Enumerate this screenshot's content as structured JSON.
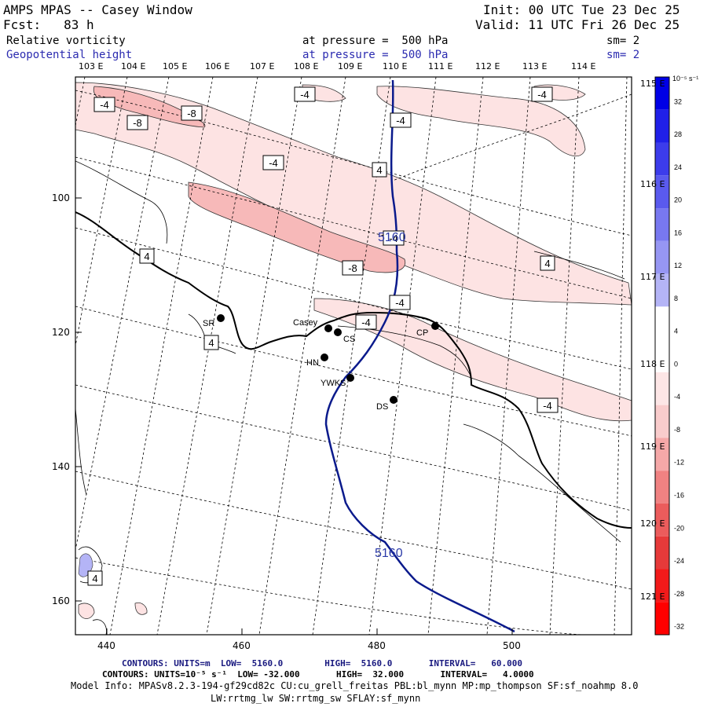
{
  "header": {
    "app_title": "AMPS MPAS -- Casey Window",
    "init": "Init: 00 UTC Tue 23 Dec 25",
    "forecast": "Fcst:   83 h",
    "valid": "Valid: 11 UTC Fri 26 Dec 25",
    "field1_name": "Relative vorticity",
    "field1_level": "at pressure =  500 hPa",
    "field1_smooth": "sm= 2",
    "field2_name": "Geopotential height",
    "field2_level": "at pressure =  500 hPa",
    "field2_smooth": "sm= 2"
  },
  "longitude_labels_top": [
    "103 E",
    "104 E",
    "105 E",
    "106 E",
    "107 E",
    "108 E",
    "109 E",
    "110 E",
    "111 E",
    "112 E",
    "113 E",
    "114 E"
  ],
  "longitude_labels_right": [
    "115 E",
    "116 E",
    "117 E",
    "118 E",
    "119 E",
    "120 E",
    "121 E"
  ],
  "x_ticks": [
    "440",
    "460",
    "480",
    "500"
  ],
  "y_ticks": [
    "100",
    "120",
    "140",
    "160"
  ],
  "stations": [
    {
      "name": "SR"
    },
    {
      "name": "Casey"
    },
    {
      "name": "CS"
    },
    {
      "name": "CP"
    },
    {
      "name": "HN"
    },
    {
      "name": "YWKS"
    },
    {
      "name": "DS"
    }
  ],
  "contour_labels": {
    "vorticity": [
      "-4",
      "-8",
      "-8",
      "-4",
      "-4",
      "-4",
      "-4",
      "-8",
      "4",
      "-4",
      "4",
      "-4",
      "-4",
      "-4",
      "4",
      "4",
      "4"
    ],
    "height": [
      "5160",
      "5160"
    ]
  },
  "colorbar": {
    "units": "10⁻⁵ s⁻¹",
    "labels": [
      "32",
      "28",
      "24",
      "20",
      "16",
      "12",
      "8",
      "4",
      "0",
      "-4",
      "-8",
      "-12",
      "-16",
      "-20",
      "-24",
      "-28",
      "-32"
    ],
    "colors": [
      "#0000e6",
      "#2020e8",
      "#3c3ceb",
      "#5a5aee",
      "#7878f0",
      "#9696f3",
      "#b4b4f6",
      "#ffffff",
      "#ffffff",
      "#fde6e6",
      "#f9cccc",
      "#f5a8a8",
      "#f08282",
      "#eb5c5c",
      "#e63a3a",
      "#f21a1a",
      "#ff0000"
    ]
  },
  "footer": {
    "contours1_label": "CONTOURS:",
    "contours1": "UNITS=m  LOW=  5160.0        HIGH=  5160.0       INTERVAL=   60.000",
    "contours2_label": "CONTOURS:",
    "contours2": "UNITS=10⁻⁵ s⁻¹  LOW= -32.000       HIGH=  32.000       INTERVAL=   4.0000",
    "model_info": "Model Info: MPASv8.2.3-194-gf29cd82c CU:cu_grell_freitas PBL:bl_mynn MP:mp_thompson SF:sf_noahmp 8.0",
    "model_info2": "LW:rrtmg_lw SW:rrtmg_sw SFLAY:sf_mynn"
  }
}
